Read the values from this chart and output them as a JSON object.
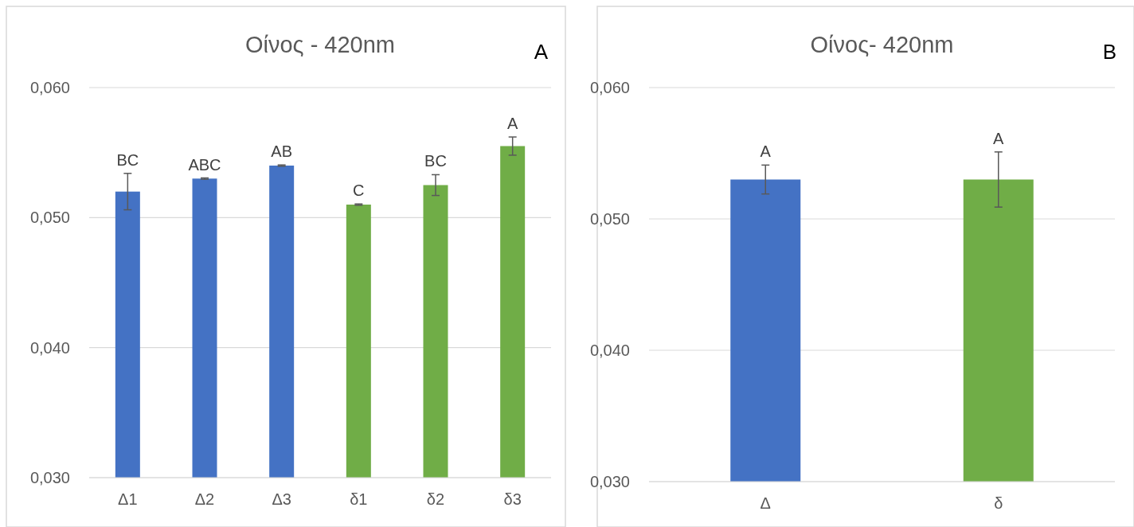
{
  "chart_data": [
    {
      "type": "bar",
      "title": "Οίνος - 420nm",
      "categories": [
        "Δ1",
        "Δ2",
        "Δ3",
        "δ1",
        "δ2",
        "δ3"
      ],
      "values": [
        0.052,
        0.053,
        0.054,
        0.051,
        0.0525,
        0.0555
      ],
      "colors": [
        "#4472c4",
        "#4472c4",
        "#4472c4",
        "#70ad47",
        "#70ad47",
        "#70ad47"
      ],
      "errors": [
        0.0014,
        5e-05,
        5e-05,
        5e-05,
        0.0008,
        0.0007
      ],
      "ylim": [
        0.03,
        0.06
      ],
      "yticks": [
        {
          "value": 0.03,
          "label": "0,030"
        },
        {
          "value": 0.04,
          "label": "0,040"
        },
        {
          "value": 0.05,
          "label": "0,050"
        },
        {
          "value": 0.06,
          "label": "0,060"
        }
      ],
      "grid": "y",
      "annotations": [
        "A",
        {
          "text": "BC",
          "x": "Δ1",
          "y": 0.0534
        },
        {
          "text": "ABC",
          "x": "Δ2",
          "y": 0.05305
        },
        {
          "text": "AB",
          "x": "Δ3",
          "y": 0.05405
        },
        {
          "text": "C",
          "x": "δ1",
          "y": 0.05105
        },
        {
          "text": "BC",
          "x": "δ2",
          "y": 0.0533
        },
        {
          "text": "A",
          "x": "δ3",
          "y": 0.0562
        }
      ]
    },
    {
      "type": "bar",
      "title": "Οίνος- 420nm",
      "categories": [
        "Δ",
        "δ"
      ],
      "values": [
        0.053,
        0.053
      ],
      "colors": [
        "#4472c4",
        "#70ad47"
      ],
      "errors": [
        0.0011,
        0.0021
      ],
      "ylim": [
        0.03,
        0.06
      ],
      "yticks": [
        {
          "value": 0.03,
          "label": "0,030"
        },
        {
          "value": 0.04,
          "label": "0,040"
        },
        {
          "value": 0.05,
          "label": "0,050"
        },
        {
          "value": 0.06,
          "label": "0,060"
        }
      ],
      "grid": "y",
      "annotations": [
        "B",
        {
          "text": "A",
          "x": "Δ",
          "y": 0.0541
        },
        {
          "text": "A",
          "x": "δ",
          "y": 0.0551
        }
      ]
    }
  ]
}
